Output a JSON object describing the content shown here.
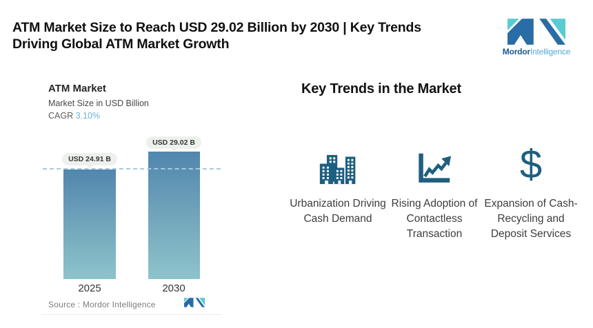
{
  "header": {
    "title_line1": "ATM Market Size to Reach USD 29.02 Billion by 2030 | Key Trends",
    "title_line2": "Driving Global ATM Market Growth",
    "brand": {
      "name_bold": "Mordor",
      "name_light": "Intelligence"
    }
  },
  "chart_data": {
    "type": "bar",
    "title": "ATM Market",
    "subtitle": "Market Size in USD Billion",
    "cagr_label": "CAGR",
    "cagr_value": "3.10%",
    "categories": [
      "2025",
      "2030"
    ],
    "values": [
      24.91,
      29.02
    ],
    "data_labels": [
      "USD 24.91 B",
      "USD 29.02 B"
    ],
    "unit": "USD Billion",
    "ylim": [
      0,
      33
    ],
    "grid": false,
    "reference_line_at": 24.91,
    "source": "Source :  Mordor Intelligence"
  },
  "trends": {
    "heading": "Key Trends in the Market",
    "items": [
      {
        "icon": "city-buildings-icon",
        "label": "Urbanization Driving Cash Demand"
      },
      {
        "icon": "growth-chart-icon",
        "label": "Rising Adoption of Contactless Transaction"
      },
      {
        "icon": "dollar-sign-icon",
        "label": "Expansion of Cash-Recycling and Deposit Services"
      }
    ]
  },
  "colors": {
    "trend_icon": "#1E5F80",
    "bar_gradient_top": "#5186AE",
    "bar_gradient_bottom": "#8DC4CB",
    "dashed_line": "#A7C9E0",
    "cagr_value": "#6CB0DC",
    "label_pill_bg": "#EDF1EC",
    "logo_navy": "#2A6CA5",
    "logo_teal": "#59CBD3",
    "brand_text_bold": "#1D5A8C",
    "brand_text_light": "#56A7D5"
  }
}
